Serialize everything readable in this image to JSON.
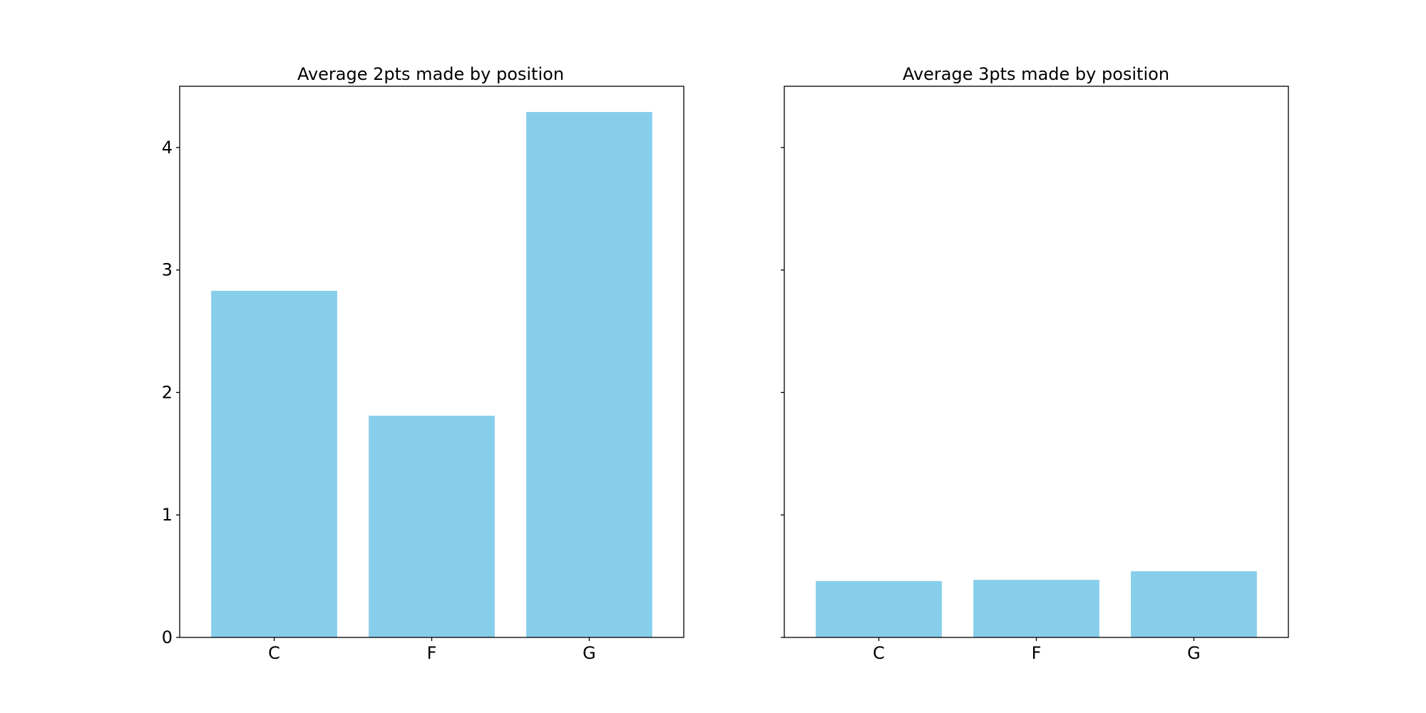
{
  "chart_data": [
    {
      "type": "bar",
      "title": "Average 2pts made by position",
      "xlabel": "",
      "ylabel": "",
      "categories": [
        "C",
        "F",
        "G"
      ],
      "values": [
        2.83,
        1.81,
        4.29
      ],
      "ylim": [
        0,
        4.5
      ],
      "yticks": [
        "0",
        "1",
        "2",
        "3",
        "4"
      ],
      "grid": false,
      "color": "#87ceeb"
    },
    {
      "type": "bar",
      "title": "Average 3pts made by position",
      "xlabel": "",
      "ylabel": "",
      "categories": [
        "C",
        "F",
        "G"
      ],
      "values": [
        0.46,
        0.47,
        0.54
      ],
      "ylim": [
        0,
        4.5
      ],
      "yticks": [],
      "grid": false,
      "color": "#87ceeb"
    }
  ]
}
